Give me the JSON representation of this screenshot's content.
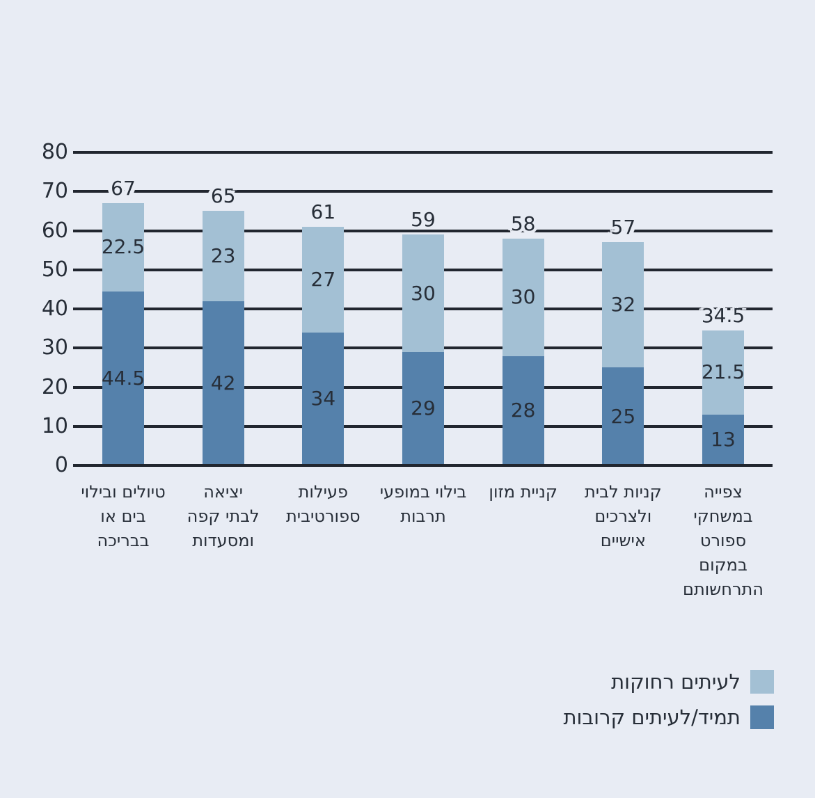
{
  "background_color": "#e8ecf4",
  "text_color": "#272e38",
  "gridline_color": "#21262f",
  "chart_data": {
    "type": "bar",
    "stacked": true,
    "title": "",
    "xlabel": "",
    "ylabel": "",
    "ylim": [
      0,
      80
    ],
    "yticks": [
      0,
      10,
      20,
      30,
      40,
      50,
      60,
      70,
      80
    ],
    "grid": "horizontal",
    "legend_position": "bottom-right",
    "categories": [
      "טיולים ובילוי בים או בבריכה",
      "יציאה לבתי קפה ומסעדות",
      "פעילות ספורטיבית",
      "בילוי במופעי תרבות",
      "קניית מזון",
      "קניות לבית ולצרכים אישיים",
      "צפייה במשחקי ספורט במקום התרחשותם"
    ],
    "category_lines": [
      [
        "טיולים ובילוי",
        "בים או",
        "בבריכה"
      ],
      [
        "יציאה",
        "לבתי קפה",
        "ומסעדות"
      ],
      [
        "פעילות",
        "ספורטיבית"
      ],
      [
        "בילוי במופעי",
        "תרבות"
      ],
      [
        "קניית מזון"
      ],
      [
        "קניות לבית",
        "ולצרכים",
        "אישיים"
      ],
      [
        "צפייה",
        "במשחקי",
        "ספורט",
        "במקום",
        "התרחשותם"
      ]
    ],
    "series": [
      {
        "name": "תמיד/לעיתים קרובות",
        "color": "#5581ab",
        "values": [
          44.5,
          42,
          34,
          29,
          28,
          25,
          13
        ]
      },
      {
        "name": "לעיתים רחוקות",
        "color": "#a3c0d4",
        "values": [
          22.5,
          23,
          27,
          30,
          30,
          32,
          21.5
        ]
      }
    ],
    "totals": [
      67,
      65,
      61,
      59,
      58,
      57,
      34.5
    ],
    "legend": [
      {
        "label": "לעיתים רחוקות",
        "color": "#a3c0d4"
      },
      {
        "label": "תמיד/לעיתים קרובות",
        "color": "#5581ab"
      }
    ]
  }
}
